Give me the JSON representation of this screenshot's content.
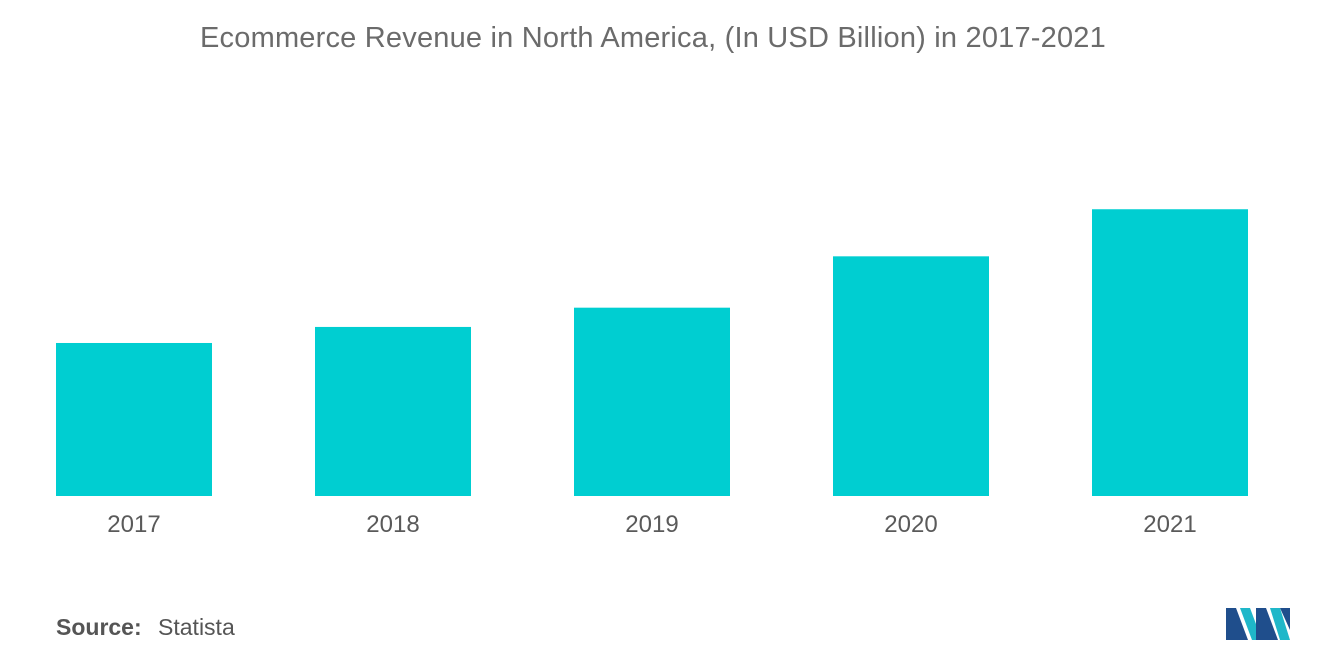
{
  "chart_data": {
    "type": "bar",
    "title": "Ecommerce Revenue in North America, (In USD Billion) in 2017-2021",
    "xlabel": "",
    "ylabel": "",
    "categories": [
      "2017",
      "2018",
      "2019",
      "2020",
      "2021"
    ],
    "values": [
      143,
      158,
      176,
      224,
      268
    ],
    "ylim": [
      0,
      300
    ],
    "grid": false,
    "legend": "none",
    "bar_color": "#00CED1"
  },
  "source": {
    "label": "Source:",
    "value": "Statista"
  },
  "colors": {
    "title": "#6b6b6b",
    "tick_label": "#5a5a5a",
    "logo_dark": "#1f4e8c",
    "logo_light": "#1fb7c9"
  },
  "logo": {
    "icon": "mordor-intelligence-logo-icon"
  }
}
